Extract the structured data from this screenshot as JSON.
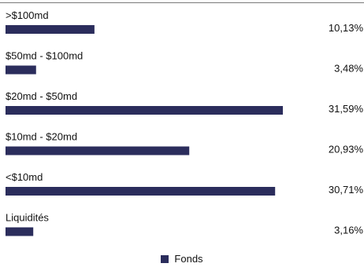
{
  "chart_data": {
    "type": "bar",
    "orientation": "horizontal",
    "categories": [
      ">$100md",
      "$50md - $100md",
      "$20md - $50md",
      "$10md - $20md",
      "<$10md",
      "Liquidités"
    ],
    "series": [
      {
        "name": "Fonds",
        "values": [
          10.13,
          3.48,
          31.59,
          20.93,
          30.71,
          3.16
        ],
        "labels": [
          "10,13%",
          "3,48%",
          "31,59%",
          "20,93%",
          "30,71%",
          "3,16%"
        ]
      }
    ],
    "xlim": [
      0,
      32
    ],
    "grid": false,
    "legend": "bottom-center",
    "bar_color": "#2b2d5c"
  }
}
